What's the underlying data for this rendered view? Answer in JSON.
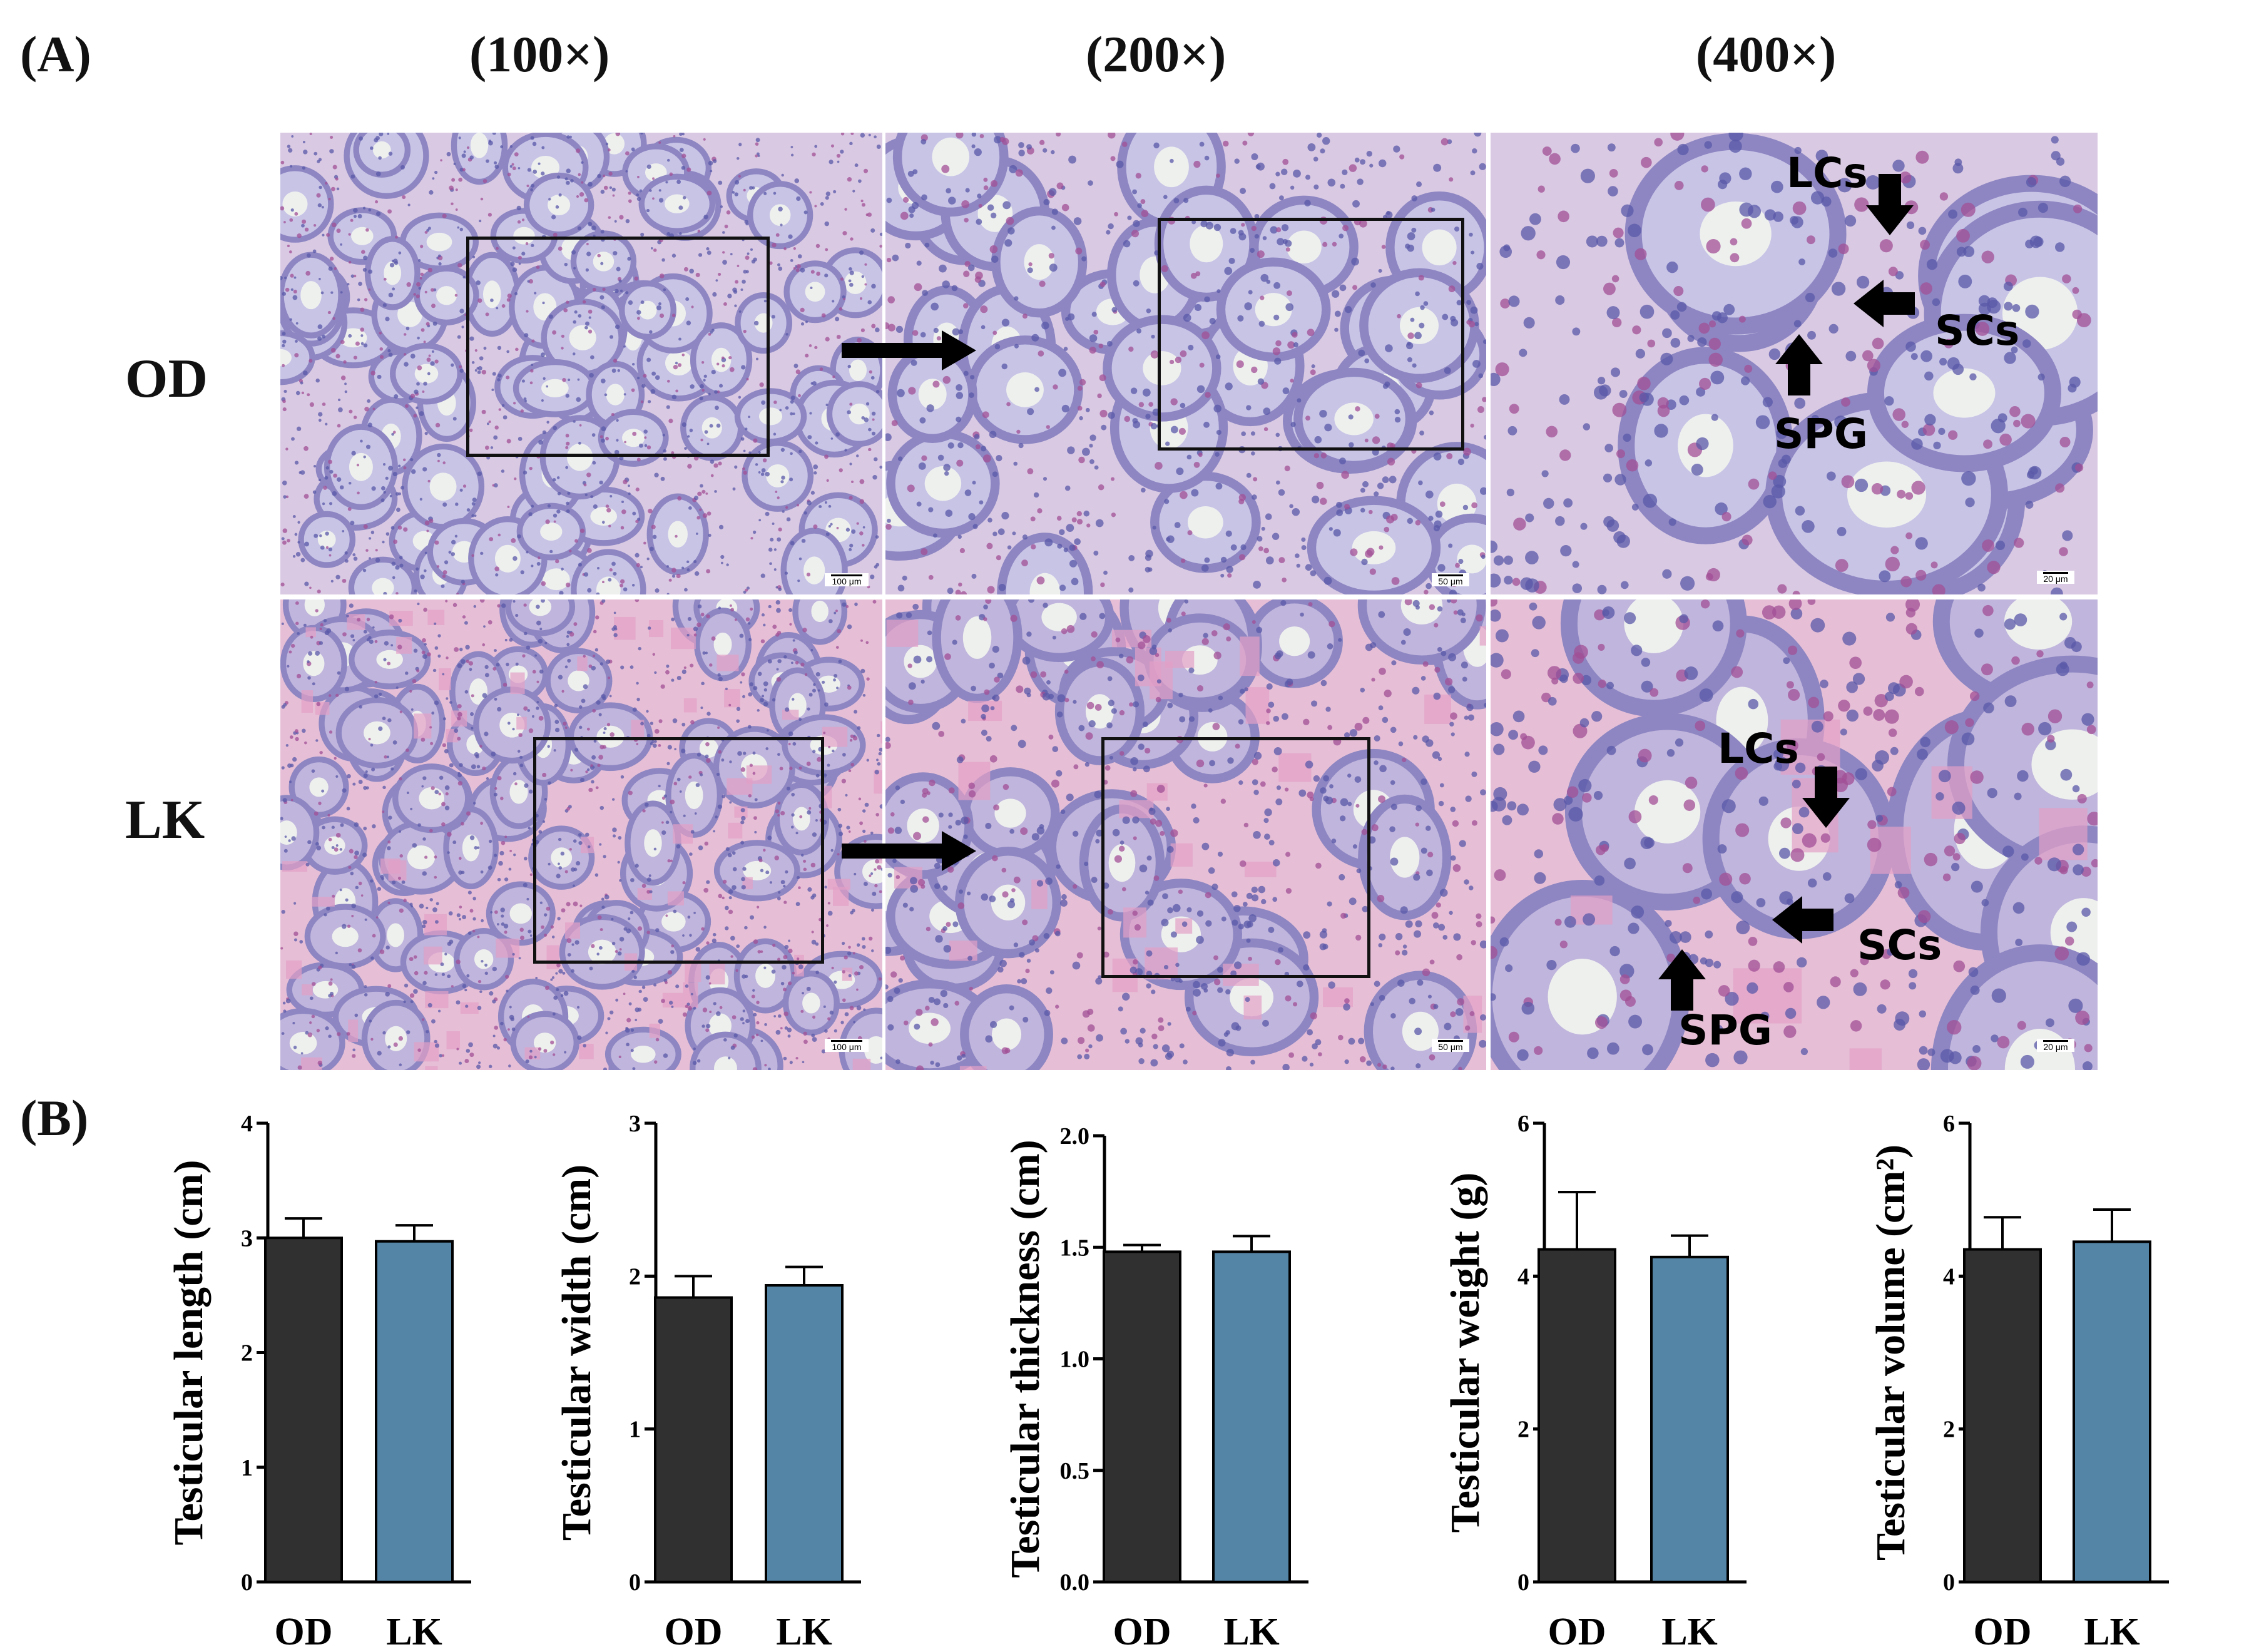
{
  "figure": {
    "panel_a_label": "(A)",
    "panel_b_label": "(B)",
    "magnifications": [
      "(100×)",
      "(200×)",
      "(400×)"
    ],
    "rows": [
      "OD",
      "LK"
    ],
    "scale_bars": [
      "100 μm",
      "50 μm",
      "20 μm"
    ],
    "annotations": {
      "lcs": "LCs",
      "scs": "SCs",
      "spg": "SPG"
    },
    "colors": {
      "od_bar": "#303030",
      "lk_bar": "#5485a6",
      "tissue_bg": "#e8c8dc"
    }
  },
  "chart_data": [
    {
      "type": "bar",
      "ylabel": "Testicular length (cm)",
      "categories": [
        "OD",
        "LK"
      ],
      "values": [
        3.0,
        2.97
      ],
      "errors": [
        0.17,
        0.14
      ],
      "ylim": [
        0,
        4
      ],
      "yticks": [
        "0",
        "1",
        "2",
        "3",
        "4"
      ]
    },
    {
      "type": "bar",
      "ylabel": "Testicular width (cm)",
      "categories": [
        "OD",
        "LK"
      ],
      "values": [
        1.86,
        1.94
      ],
      "errors": [
        0.14,
        0.12
      ],
      "ylim": [
        0,
        3
      ],
      "yticks": [
        "0",
        "1",
        "2",
        "3"
      ]
    },
    {
      "type": "bar",
      "ylabel": "Testicular thickness (cm)",
      "categories": [
        "OD",
        "LK"
      ],
      "values": [
        1.48,
        1.48
      ],
      "errors": [
        0.03,
        0.07
      ],
      "ylim": [
        0,
        2.0
      ],
      "yticks": [
        "0.0",
        "0.5",
        "1.0",
        "1.5",
        "2.0"
      ]
    },
    {
      "type": "bar",
      "ylabel": "Testicular weight (g)",
      "categories": [
        "OD",
        "LK"
      ],
      "values": [
        4.35,
        4.25
      ],
      "errors": [
        0.75,
        0.28
      ],
      "ylim": [
        0,
        6
      ],
      "yticks": [
        "0",
        "2",
        "4",
        "6"
      ]
    },
    {
      "type": "bar",
      "ylabel": "Testicular volume (cm²)",
      "categories": [
        "OD",
        "LK"
      ],
      "values": [
        4.35,
        4.45
      ],
      "errors": [
        0.42,
        0.42
      ],
      "ylim": [
        0,
        6
      ],
      "yticks": [
        "0",
        "2",
        "4",
        "6"
      ]
    }
  ]
}
